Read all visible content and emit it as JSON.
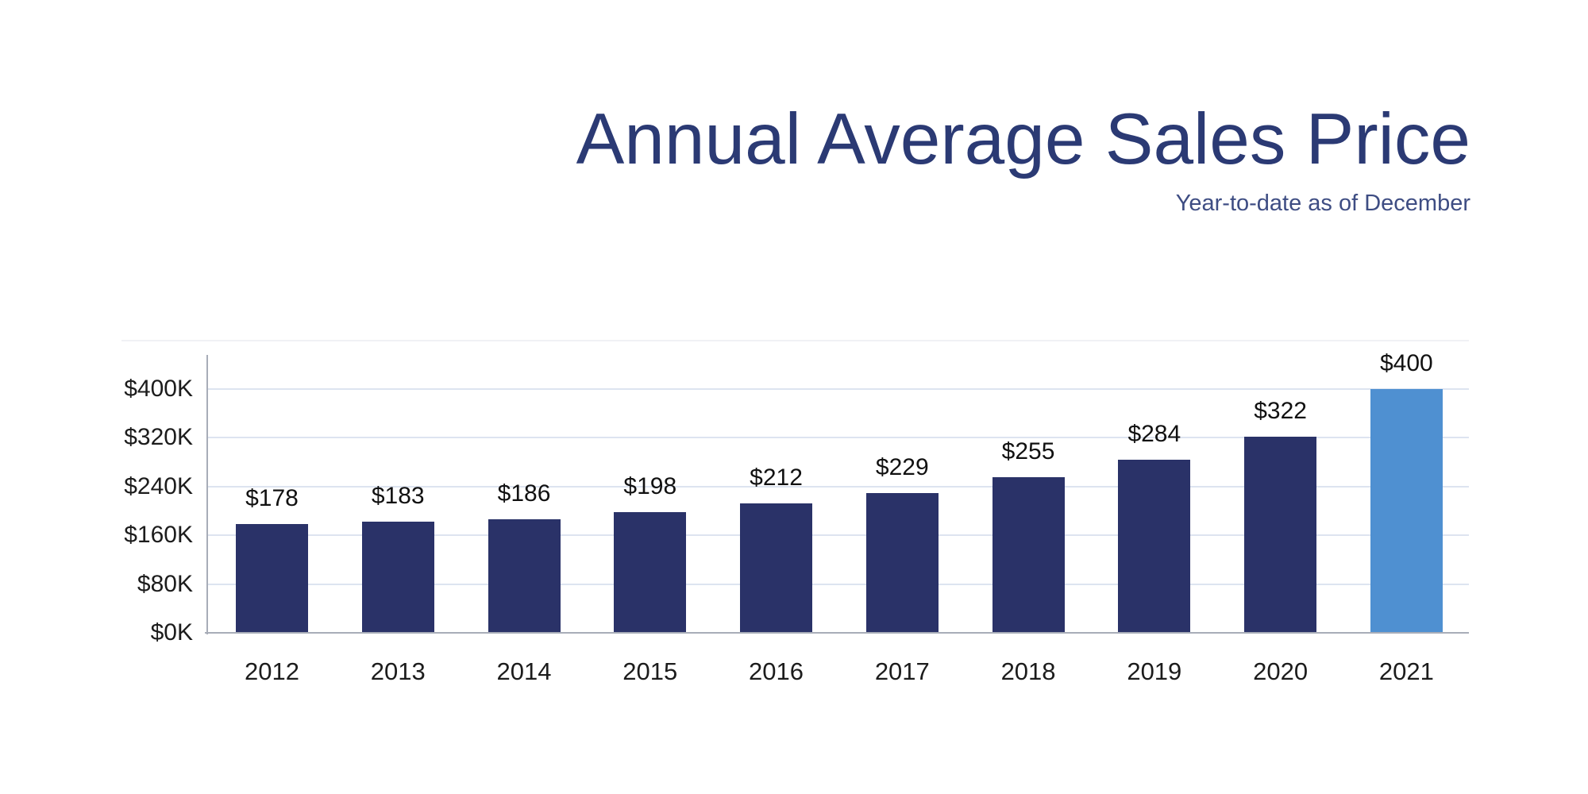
{
  "header": {
    "title": "Annual Average Sales Price",
    "subtitle": "Year-to-date as of December",
    "title_color": "#2b3a74",
    "subtitle_color": "#3e4d83"
  },
  "chart_data": {
    "type": "bar",
    "title": "Annual Average Sales Price",
    "subtitle": "Year-to-date as of December",
    "categories": [
      "2012",
      "2013",
      "2014",
      "2015",
      "2016",
      "2017",
      "2018",
      "2019",
      "2020",
      "2021"
    ],
    "values": [
      178,
      183,
      186,
      198,
      212,
      229,
      255,
      284,
      322,
      400
    ],
    "value_labels": [
      "$178",
      "$183",
      "$186",
      "$198",
      "$212",
      "$229",
      "$255",
      "$284",
      "$322",
      "$400"
    ],
    "value_unit": "thousand dollars",
    "ylim": [
      0,
      400
    ],
    "yticks": [
      {
        "value": 0,
        "label": "$0K"
      },
      {
        "value": 80,
        "label": "$80K"
      },
      {
        "value": 160,
        "label": "$160K"
      },
      {
        "value": 240,
        "label": "$240K"
      },
      {
        "value": 320,
        "label": "$320K"
      },
      {
        "value": 400,
        "label": "$400K"
      }
    ],
    "grid": true,
    "legend": "none",
    "bar_color": "#2a3268",
    "highlight_color": "#4f90d1",
    "highlight_index": 9,
    "grid_color": "#dde4f0",
    "axis_color": "#a8adb8",
    "tick_label_color": "#1c1c1c",
    "value_label_color": "#111111"
  }
}
